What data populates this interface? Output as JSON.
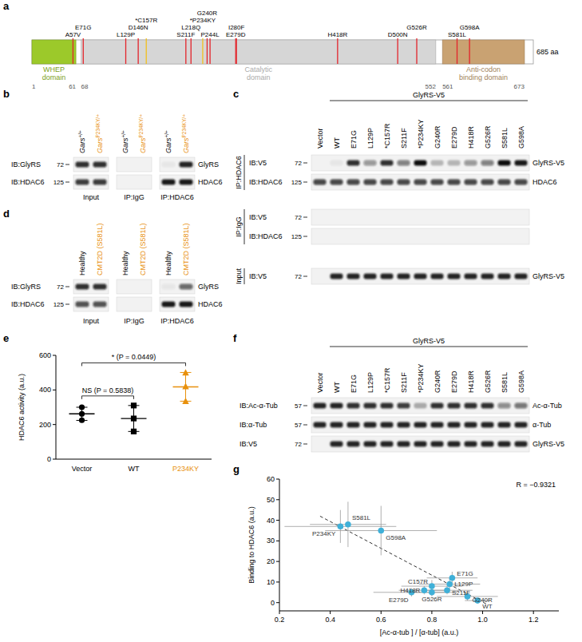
{
  "panel_labels": [
    "a",
    "b",
    "c",
    "d",
    "e",
    "f",
    "g"
  ],
  "domain_map": {
    "length": 685,
    "length_label": "685 aa",
    "domains": [
      {
        "name_lines": [
          "WHEP",
          "domain"
        ],
        "start": 1,
        "end": 61,
        "color": "#9cc92a"
      },
      {
        "name_lines": [
          "Catalytic",
          "domain"
        ],
        "start": 68,
        "end": 552,
        "color": "#d6d6d6"
      },
      {
        "name_lines": [
          "Anti-codon",
          "binding domain"
        ],
        "start": 561,
        "end": 673,
        "color": "#c9a272"
      }
    ],
    "mutations": [
      {
        "label": "A57V",
        "position": 57,
        "color": "#e3242b"
      },
      {
        "label": "E71G",
        "position": 71,
        "color": "#e3242b"
      },
      {
        "label": "L129P",
        "position": 129,
        "color": "#e3242b"
      },
      {
        "label": "D146N",
        "position": 146,
        "color": "#e3242b"
      },
      {
        "label": "*C157R",
        "position": 157,
        "color": "#f2c01e"
      },
      {
        "label": "S211F",
        "position": 211,
        "color": "#e3242b"
      },
      {
        "label": "L218Q",
        "position": 218,
        "color": "#e3242b"
      },
      {
        "label": "*P234KY",
        "position": 234,
        "color": "#f2c01e"
      },
      {
        "label": "G240R",
        "position": 240,
        "color": "#e3242b"
      },
      {
        "label": "P244L",
        "position": 244,
        "color": "#e3242b"
      },
      {
        "label": "E279D",
        "position": 279,
        "color": "#e3242b"
      },
      {
        "label": "I280F",
        "position": 280,
        "color": "#e3242b"
      },
      {
        "label": "H418R",
        "position": 418,
        "color": "#e3242b"
      },
      {
        "label": "D500N",
        "position": 500,
        "color": "#e3242b"
      },
      {
        "label": "G526R",
        "position": 526,
        "color": "#e3242b"
      },
      {
        "label": "S581L",
        "position": 581,
        "color": "#e3242b"
      },
      {
        "label": "G598A",
        "position": 598,
        "color": "#e3242b"
      }
    ]
  },
  "blot_b": {
    "lanes": [
      {
        "text": "Gars",
        "sup": "+/+",
        "color": "#000000"
      },
      {
        "text": "Gars",
        "sup": "P234KY/+",
        "color": "#e8900c"
      },
      {
        "text": "Gars",
        "sup": "+/+",
        "color": "#000000"
      },
      {
        "text": "Gars",
        "sup": "P234KY/+",
        "color": "#e8900c"
      },
      {
        "text": "Gars",
        "sup": "+/+",
        "color": "#000000"
      },
      {
        "text": "Gars",
        "sup": "P234KY/+",
        "color": "#e8900c"
      }
    ],
    "groups": [
      {
        "label": "Input",
        "lanes": [
          0,
          1
        ]
      },
      {
        "label": "IP:IgG",
        "lanes": [
          2,
          3
        ]
      },
      {
        "label": "IP:HDAC6",
        "lanes": [
          4,
          5
        ]
      }
    ],
    "rows": [
      {
        "label": "IB:GlyRS",
        "marker": 72,
        "band": "GlyRS",
        "intensities": [
          0.85,
          0.85,
          0,
          0,
          0.05,
          0.9
        ]
      },
      {
        "label": "IB:HDAC6",
        "marker": 125,
        "band": "HDAC6",
        "intensities": [
          0.8,
          0.8,
          0,
          0,
          0.95,
          0.95
        ]
      }
    ]
  },
  "blot_c": {
    "header": "GlyRS-V5",
    "header_lanes": [
      1,
      12
    ],
    "lanes": [
      {
        "text": "Vector"
      },
      {
        "text": "WT"
      },
      {
        "text": "E71G"
      },
      {
        "text": "L129P"
      },
      {
        "text": "*C157R"
      },
      {
        "text": "S211F"
      },
      {
        "text": "*P234KY"
      },
      {
        "text": "G240R"
      },
      {
        "text": "E279D"
      },
      {
        "text": "H418R"
      },
      {
        "text": "G526R"
      },
      {
        "text": "S581L"
      },
      {
        "text": "G598A"
      }
    ],
    "row_groups": [
      {
        "label": "IP:HDAC6",
        "rows": [
          0,
          1
        ]
      },
      {
        "label": "IP:IgG",
        "rows": [
          2,
          3
        ]
      },
      {
        "label": "Input",
        "rows": [
          4
        ]
      }
    ],
    "rows": [
      {
        "label": "IB:V5",
        "marker": 72,
        "band": "GlyRS-V5",
        "intensities": [
          0,
          0.05,
          0.85,
          0.4,
          0.85,
          0.5,
          1,
          0.25,
          0.25,
          0.4,
          0.5,
          1,
          0.95
        ]
      },
      {
        "label": "IB:HDAC6",
        "marker": 125,
        "band": "HDAC6",
        "intensities": [
          0.75,
          0.75,
          0.75,
          0.75,
          0.75,
          0.75,
          0.75,
          0.75,
          0.75,
          0.75,
          0.75,
          0.75,
          0.75
        ]
      },
      {
        "label": "IB:V5",
        "marker": 72,
        "intensities": [
          0,
          0,
          0,
          0,
          0,
          0,
          0,
          0,
          0,
          0,
          0,
          0,
          0
        ]
      },
      {
        "label": "IB:HDAC6",
        "marker": 125,
        "intensities": [
          0,
          0,
          0,
          0,
          0,
          0,
          0,
          0,
          0,
          0,
          0,
          0,
          0
        ]
      },
      {
        "label": "IB:V5",
        "marker": 72,
        "band": "GlyRS-V5",
        "intensities": [
          0,
          0.9,
          0.9,
          0.9,
          0.9,
          0.9,
          0.9,
          0.9,
          0.9,
          0.9,
          0.9,
          0.9,
          0.9
        ]
      }
    ]
  },
  "blot_d": {
    "lanes": [
      {
        "text": "Healthy",
        "color": "#000000"
      },
      {
        "text": "CMT2D (S581L)",
        "color": "#e8900c"
      },
      {
        "text": "Healthy",
        "color": "#000000"
      },
      {
        "text": "CMT2D (S581L)",
        "color": "#e8900c"
      },
      {
        "text": "Healthy",
        "color": "#000000"
      },
      {
        "text": "CMT2D (S581L)",
        "color": "#e8900c"
      }
    ],
    "groups": [
      {
        "label": "Input",
        "lanes": [
          0,
          1
        ]
      },
      {
        "label": "IP:IgG",
        "lanes": [
          2,
          3
        ]
      },
      {
        "label": "IP:HDAC6",
        "lanes": [
          4,
          5
        ]
      }
    ],
    "rows": [
      {
        "label": "IB:GlyRS",
        "marker": 72,
        "band": "GlyRS",
        "intensities": [
          0.85,
          0.85,
          0,
          0,
          0.05,
          0.6
        ]
      },
      {
        "label": "IB:HDAC6",
        "marker": 125,
        "band": "HDAC6",
        "intensities": [
          0.7,
          0.7,
          0,
          0,
          0.95,
          0.95
        ]
      }
    ]
  },
  "blot_f": {
    "header": "GlyRS-V5",
    "header_lanes": [
      1,
      12
    ],
    "lanes": [
      {
        "text": "Vector"
      },
      {
        "text": "WT"
      },
      {
        "text": "E71G"
      },
      {
        "text": "L129P"
      },
      {
        "text": "*C157R"
      },
      {
        "text": "S211F"
      },
      {
        "text": "*P234KY"
      },
      {
        "text": "G240R"
      },
      {
        "text": "E279D"
      },
      {
        "text": "H418R"
      },
      {
        "text": "G526R"
      },
      {
        "text": "S581L"
      },
      {
        "text": "G598A"
      }
    ],
    "rows": [
      {
        "label": "IB:Ac-α-Tub",
        "marker": 57,
        "band": "Ac-α-Tub",
        "intensities": [
          0.9,
          0.9,
          0.85,
          0.85,
          0.85,
          0.8,
          0.3,
          0.85,
          0.85,
          0.85,
          0.85,
          0.45,
          0.55
        ]
      },
      {
        "label": "IB:α-Tub",
        "marker": 57,
        "band": "α-Tub",
        "intensities": [
          0.9,
          0.9,
          0.9,
          0.9,
          0.9,
          0.9,
          0.9,
          0.9,
          0.9,
          0.9,
          0.9,
          0.9,
          0.9
        ]
      },
      {
        "label": "IB:V5",
        "marker": 72,
        "band": "GlyRS-V5",
        "intensities": [
          0,
          0.9,
          0.9,
          0.9,
          0.9,
          0.9,
          0.9,
          0.9,
          0.9,
          0.9,
          0.9,
          0.9,
          0.9
        ]
      }
    ]
  },
  "chart_data": [
    {
      "type": "dot",
      "ylabel": "HDAC6 activity (a.u.)",
      "categories": [
        "Vector",
        "WT",
        "P234KY"
      ],
      "series": [
        {
          "color": "#000000",
          "marker": "circle",
          "values": [
            300,
            262,
            225
          ],
          "mean": 262,
          "sd": 38
        },
        {
          "color": "#000000",
          "marker": "square",
          "values": [
            310,
            235,
            160
          ],
          "mean": 235,
          "sd": 75
        },
        {
          "color": "#e8900c",
          "marker": "triangle",
          "values": [
            500,
            420,
            335
          ],
          "mean": 418,
          "sd": 83
        }
      ],
      "ylim": [
        0,
        600
      ],
      "yticks": [
        0,
        200,
        400,
        600
      ],
      "annotations": [
        {
          "text": "NS (P = 0.5838)",
          "from": 0,
          "to": 1
        },
        {
          "text": "* (P = 0.0449)",
          "from": 0,
          "to": 2
        }
      ]
    },
    {
      "type": "scatter",
      "xlabel": "[Ac-α-tub ] / [α-tub] (a.u.)",
      "ylabel": "Binding to HDAC6 (a.u.)",
      "annotation": "R = −0.9321",
      "color": "#3fb0d8",
      "labels": [
        "P234KY",
        "S581L",
        "G598A",
        "E71G",
        "L129P",
        "C157R",
        "H418R",
        "S211F",
        "E279D",
        "G526R",
        "G240R",
        "WT"
      ],
      "x": [
        0.44,
        0.47,
        0.6,
        0.88,
        0.87,
        0.8,
        0.77,
        0.86,
        0.72,
        0.8,
        0.94,
        0.98
      ],
      "y": [
        37,
        38,
        35,
        12,
        9,
        8,
        6,
        6,
        5,
        5,
        3,
        1
      ],
      "x_errors": [
        0.22,
        0.15,
        0.22,
        0.1,
        0.12,
        0.12,
        0.1,
        0.1,
        0.15,
        0.1,
        0.12,
        0.05
      ],
      "y_errors": [
        8,
        11,
        12,
        3,
        3,
        3,
        2,
        2,
        2,
        2,
        2,
        1
      ],
      "trend": {
        "x": [
          0.36,
          1.02
        ],
        "y": [
          42,
          -1
        ]
      },
      "line_style": "dashed",
      "xlim": [
        0.2,
        1.3
      ],
      "xticks": [
        0.2,
        0.4,
        0.6,
        0.8,
        {
          "value": 1,
          "label": "1.0"
        },
        1.2
      ],
      "ylim": [
        -4,
        60
      ],
      "yticks": [
        0,
        10,
        20,
        30,
        40,
        50,
        60
      ]
    }
  ]
}
